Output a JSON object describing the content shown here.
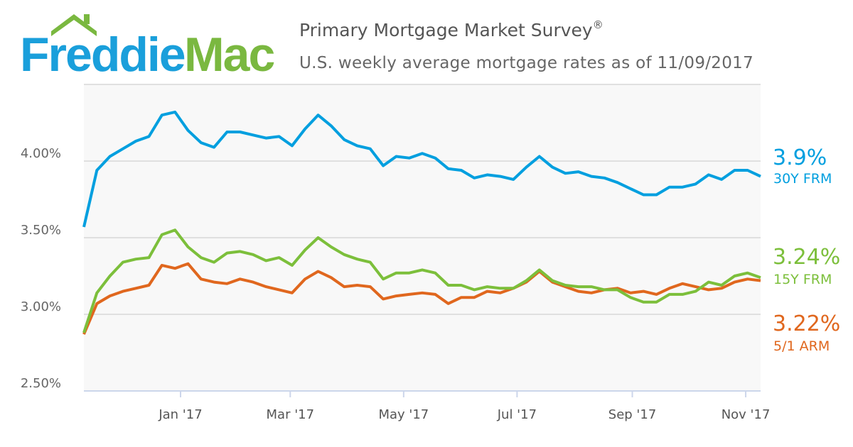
{
  "logo": {
    "part1": "Freddie",
    "part2": "Mac",
    "color1": "#1a9fdb",
    "color2": "#7ab840"
  },
  "header": {
    "title": "Primary Mortgage Market Survey",
    "title_mark": "®",
    "subtitle": "U.S. weekly average mortgage rates as of 11/09/2017"
  },
  "chart_data": {
    "type": "line",
    "title": "Primary Mortgage Market Survey®",
    "subtitle": "U.S. weekly average mortgage rates as of 11/09/2017",
    "xlabel": "",
    "ylabel": "",
    "x_interval": "weekly",
    "x_end_date": "2017-11-09",
    "ylim": [
      2.5,
      4.5
    ],
    "yticks": [
      {
        "value": 2.5,
        "label": "2.50%"
      },
      {
        "value": 3.0,
        "label": "3.00%"
      },
      {
        "value": 3.5,
        "label": "3.50%"
      },
      {
        "value": 4.0,
        "label": "4.00%"
      },
      {
        "value": 4.5,
        "label": ""
      }
    ],
    "xticks": [
      {
        "label": "Jan '17",
        "date": "2017-01-01"
      },
      {
        "label": "Mar '17",
        "date": "2017-03-01"
      },
      {
        "label": "May '17",
        "date": "2017-05-01"
      },
      {
        "label": "Jul '17",
        "date": "2017-07-01"
      },
      {
        "label": "Sep '17",
        "date": "2017-09-01"
      },
      {
        "label": "Nov '17",
        "date": "2017-11-01"
      }
    ],
    "grid": true,
    "legend": "right (end labels)",
    "series": [
      {
        "name": "30Y FRM",
        "latest": "3.9%",
        "color": "#009fdf",
        "values": [
          3.57,
          3.94,
          4.03,
          4.08,
          4.13,
          4.16,
          4.3,
          4.32,
          4.2,
          4.12,
          4.09,
          4.19,
          4.19,
          4.17,
          4.15,
          4.16,
          4.1,
          4.21,
          4.3,
          4.23,
          4.14,
          4.1,
          4.08,
          3.97,
          4.03,
          4.02,
          4.05,
          4.02,
          3.95,
          3.94,
          3.89,
          3.91,
          3.9,
          3.88,
          3.96,
          4.03,
          3.96,
          3.92,
          3.93,
          3.9,
          3.89,
          3.86,
          3.82,
          3.78,
          3.78,
          3.83,
          3.83,
          3.85,
          3.91,
          3.88,
          3.94,
          3.94,
          3.9
        ]
      },
      {
        "name": "15Y FRM",
        "latest": "3.24%",
        "color": "#7cbf3b",
        "values": [
          2.88,
          3.14,
          3.25,
          3.34,
          3.36,
          3.37,
          3.52,
          3.55,
          3.44,
          3.37,
          3.34,
          3.4,
          3.41,
          3.39,
          3.35,
          3.37,
          3.32,
          3.42,
          3.5,
          3.44,
          3.39,
          3.36,
          3.34,
          3.23,
          3.27,
          3.27,
          3.29,
          3.27,
          3.19,
          3.19,
          3.16,
          3.18,
          3.17,
          3.17,
          3.22,
          3.29,
          3.22,
          3.19,
          3.18,
          3.18,
          3.16,
          3.16,
          3.11,
          3.08,
          3.08,
          3.13,
          3.13,
          3.15,
          3.21,
          3.19,
          3.25,
          3.27,
          3.24
        ]
      },
      {
        "name": "5/1 ARM",
        "latest": "3.22%",
        "color": "#e0671e",
        "values": [
          2.87,
          3.07,
          3.12,
          3.15,
          3.17,
          3.19,
          3.32,
          3.3,
          3.33,
          3.23,
          3.21,
          3.2,
          3.23,
          3.21,
          3.18,
          3.16,
          3.14,
          3.23,
          3.28,
          3.24,
          3.18,
          3.19,
          3.18,
          3.1,
          3.12,
          3.13,
          3.14,
          3.13,
          3.07,
          3.11,
          3.11,
          3.15,
          3.14,
          3.17,
          3.21,
          3.28,
          3.21,
          3.18,
          3.15,
          3.14,
          3.16,
          3.17,
          3.14,
          3.15,
          3.13,
          3.17,
          3.2,
          3.18,
          3.16,
          3.17,
          3.21,
          3.23,
          3.22
        ]
      }
    ]
  }
}
